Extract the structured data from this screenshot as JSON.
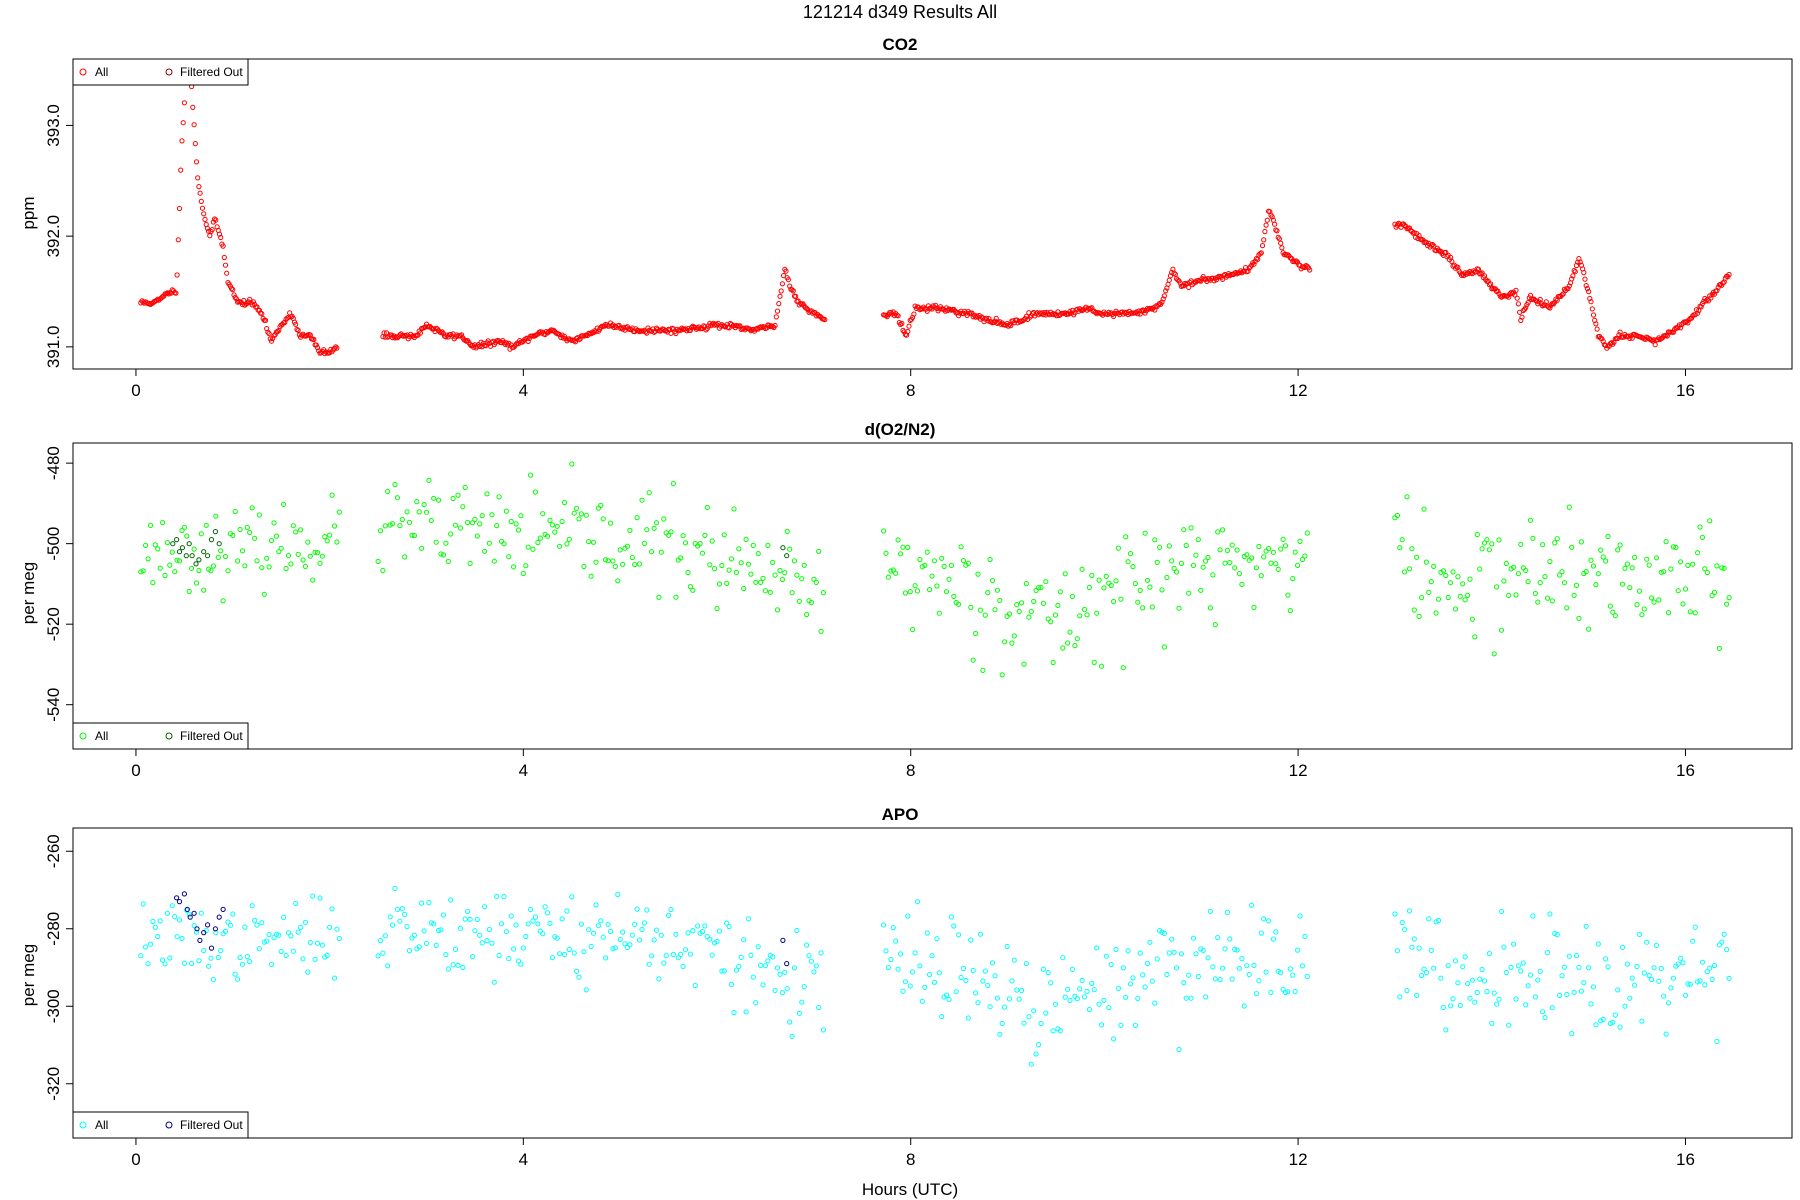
{
  "figure": {
    "title": "121214   d349   Results All",
    "xlabel": "Hours (UTC)"
  },
  "chart_data": [
    {
      "type": "scatter",
      "title": "CO2",
      "ylabel": "ppm",
      "xlim": [
        -0.65,
        17.1
      ],
      "ylim": [
        390.8,
        393.6
      ],
      "xticks": [
        0,
        4,
        8,
        12,
        16
      ],
      "yticks": [
        391.0,
        392.0,
        393.0
      ],
      "ytick_labels": [
        "391.0",
        "392.0",
        "393.0"
      ],
      "grid": false,
      "legend_position": "top-left",
      "legend": [
        {
          "name": "All",
          "color": "#ff0000"
        },
        {
          "name": "Filtered Out",
          "color": "#8b0000"
        }
      ],
      "mode": "smooth",
      "seed": 11,
      "noise": 0.012,
      "segments": [
        {
          "start": 0.05,
          "end": 2.08,
          "step": 0.0125,
          "knots": [
            [
              0.05,
              391.4
            ],
            [
              0.2,
              391.4
            ],
            [
              0.28,
              391.45
            ],
            [
              0.35,
              391.5
            ],
            [
              0.42,
              391.5
            ],
            [
              0.47,
              392.8
            ],
            [
              0.52,
              393.5
            ],
            [
              0.57,
              393.4
            ],
            [
              0.6,
              393.0
            ],
            [
              0.64,
              392.5
            ],
            [
              0.7,
              392.2
            ],
            [
              0.76,
              392.0
            ],
            [
              0.82,
              392.15
            ],
            [
              0.9,
              391.9
            ],
            [
              0.95,
              391.6
            ],
            [
              1.05,
              391.4
            ],
            [
              1.2,
              391.4
            ],
            [
              1.3,
              391.3
            ],
            [
              1.4,
              391.05
            ],
            [
              1.5,
              391.2
            ],
            [
              1.6,
              391.3
            ],
            [
              1.7,
              391.1
            ],
            [
              1.8,
              391.1
            ],
            [
              1.9,
              390.95
            ],
            [
              2.0,
              390.95
            ],
            [
              2.08,
              391.0
            ]
          ]
        },
        {
          "start": 2.55,
          "end": 7.12,
          "step": 0.0125,
          "knots": [
            [
              2.55,
              391.1
            ],
            [
              2.9,
              391.1
            ],
            [
              3.0,
              391.2
            ],
            [
              3.2,
              391.1
            ],
            [
              3.35,
              391.1
            ],
            [
              3.5,
              391.0
            ],
            [
              3.75,
              391.05
            ],
            [
              3.9,
              391.0
            ],
            [
              4.0,
              391.05
            ],
            [
              4.1,
              391.1
            ],
            [
              4.3,
              391.15
            ],
            [
              4.5,
              391.05
            ],
            [
              4.65,
              391.1
            ],
            [
              4.85,
              391.2
            ],
            [
              5.2,
              391.15
            ],
            [
              5.6,
              391.15
            ],
            [
              6.0,
              391.2
            ],
            [
              6.4,
              391.15
            ],
            [
              6.6,
              391.2
            ],
            [
              6.7,
              391.7
            ],
            [
              6.78,
              391.5
            ],
            [
              6.85,
              391.4
            ],
            [
              7.0,
              391.3
            ],
            [
              7.12,
              391.25
            ]
          ]
        },
        {
          "start": 7.72,
          "end": 12.12,
          "step": 0.0125,
          "knots": [
            [
              7.72,
              391.3
            ],
            [
              7.85,
              391.3
            ],
            [
              7.95,
              391.1
            ],
            [
              8.05,
              391.35
            ],
            [
              8.3,
              391.35
            ],
            [
              8.6,
              391.3
            ],
            [
              8.75,
              391.25
            ],
            [
              9.0,
              391.2
            ],
            [
              9.3,
              391.3
            ],
            [
              9.6,
              391.3
            ],
            [
              9.85,
              391.35
            ],
            [
              9.95,
              391.3
            ],
            [
              10.3,
              391.3
            ],
            [
              10.5,
              391.35
            ],
            [
              10.6,
              391.4
            ],
            [
              10.7,
              391.7
            ],
            [
              10.8,
              391.55
            ],
            [
              11.0,
              391.6
            ],
            [
              11.3,
              391.65
            ],
            [
              11.5,
              391.7
            ],
            [
              11.62,
              391.85
            ],
            [
              11.7,
              392.25
            ],
            [
              11.78,
              392.05
            ],
            [
              11.85,
              391.85
            ],
            [
              12.0,
              391.75
            ],
            [
              12.12,
              391.7
            ]
          ]
        },
        {
          "start": 13.0,
          "end": 16.45,
          "step": 0.0125,
          "knots": [
            [
              13.0,
              392.1
            ],
            [
              13.1,
              392.1
            ],
            [
              13.3,
              391.95
            ],
            [
              13.5,
              391.85
            ],
            [
              13.7,
              391.65
            ],
            [
              13.85,
              391.7
            ],
            [
              14.1,
              391.45
            ],
            [
              14.25,
              391.5
            ],
            [
              14.3,
              391.25
            ],
            [
              14.4,
              391.45
            ],
            [
              14.6,
              391.35
            ],
            [
              14.8,
              391.55
            ],
            [
              14.9,
              391.8
            ],
            [
              15.0,
              391.5
            ],
            [
              15.1,
              391.1
            ],
            [
              15.2,
              391.0
            ],
            [
              15.3,
              391.1
            ],
            [
              15.5,
              391.1
            ],
            [
              15.7,
              391.05
            ],
            [
              15.9,
              391.15
            ],
            [
              16.1,
              391.3
            ],
            [
              16.3,
              391.5
            ],
            [
              16.45,
              391.65
            ]
          ]
        }
      ],
      "filtered_points": []
    },
    {
      "type": "scatter",
      "title": "d(O2/N2)",
      "ylabel": "per meg",
      "xlim": [
        -0.65,
        17.1
      ],
      "ylim": [
        -551,
        -475
      ],
      "xticks": [
        0,
        4,
        8,
        12,
        16
      ],
      "yticks": [
        -540,
        -520,
        -500,
        -480
      ],
      "ytick_labels": [
        "-540",
        "-520",
        "-500",
        "-480"
      ],
      "grid": false,
      "legend_position": "bottom-left",
      "legend": [
        {
          "name": "All",
          "color": "#00ff00"
        },
        {
          "name": "Filtered Out",
          "color": "#006400"
        }
      ],
      "mode": "scatter",
      "seed": 23,
      "segments": [
        {
          "start": 0.05,
          "end": 2.1,
          "step": 0.025,
          "spread": 4.5,
          "trend": [
            [
              0.05,
              -502
            ],
            [
              1.0,
              -502
            ],
            [
              2.1,
              -499
            ]
          ]
        },
        {
          "start": 2.5,
          "end": 7.12,
          "step": 0.025,
          "spread": 6,
          "trend": [
            [
              2.5,
              -496
            ],
            [
              4.0,
              -498
            ],
            [
              5.5,
              -500
            ],
            [
              6.3,
              -507
            ],
            [
              7.12,
              -513
            ]
          ]
        },
        {
          "start": 7.72,
          "end": 12.1,
          "step": 0.025,
          "spread": 7,
          "trend": [
            [
              7.72,
              -505
            ],
            [
              8.5,
              -510
            ],
            [
              9.4,
              -520
            ],
            [
              10.2,
              -510
            ],
            [
              11.0,
              -506
            ],
            [
              12.1,
              -503
            ]
          ]
        },
        {
          "start": 13.0,
          "end": 16.45,
          "step": 0.025,
          "spread": 7,
          "trend": [
            [
              13.0,
              -500
            ],
            [
              13.5,
              -512
            ],
            [
              14.3,
              -506
            ],
            [
              15.3,
              -510
            ],
            [
              16.45,
              -505
            ]
          ]
        }
      ],
      "filtered_points": [
        [
          0.38,
          -500
        ],
        [
          0.42,
          -499
        ],
        [
          0.45,
          -502
        ],
        [
          0.48,
          -501
        ],
        [
          0.52,
          -503
        ],
        [
          0.55,
          -500
        ],
        [
          0.58,
          -503
        ],
        [
          0.62,
          -505
        ],
        [
          0.65,
          -504
        ],
        [
          0.7,
          -502
        ],
        [
          0.74,
          -503
        ],
        [
          0.78,
          -499
        ],
        [
          0.82,
          -497
        ],
        [
          0.86,
          -500
        ],
        [
          6.68,
          -501
        ],
        [
          6.72,
          -503
        ]
      ]
    },
    {
      "type": "scatter",
      "title": "APO",
      "ylabel": "per meg",
      "xlim": [
        -0.65,
        17.1
      ],
      "ylim": [
        -334,
        -254
      ],
      "xticks": [
        0,
        4,
        8,
        12,
        16
      ],
      "yticks": [
        -320,
        -300,
        -280,
        -260
      ],
      "ytick_labels": [
        "-320",
        "-300",
        "-280",
        "-260"
      ],
      "grid": false,
      "legend_position": "bottom-left",
      "legend": [
        {
          "name": "All",
          "color": "#00ffff"
        },
        {
          "name": "Filtered Out",
          "color": "#00008b"
        }
      ],
      "mode": "scatter",
      "seed": 37,
      "segments": [
        {
          "start": 0.05,
          "end": 2.1,
          "step": 0.025,
          "spread": 4.5,
          "trend": [
            [
              0.05,
              -282
            ],
            [
              1.0,
              -284
            ],
            [
              2.1,
              -282
            ]
          ]
        },
        {
          "start": 2.5,
          "end": 7.12,
          "step": 0.025,
          "spread": 6,
          "trend": [
            [
              2.5,
              -279
            ],
            [
              4.0,
              -281
            ],
            [
              5.5,
              -282
            ],
            [
              6.3,
              -290
            ],
            [
              7.12,
              -296
            ]
          ]
        },
        {
          "start": 7.72,
          "end": 12.1,
          "step": 0.025,
          "spread": 7,
          "trend": [
            [
              7.72,
              -288
            ],
            [
              8.5,
              -292
            ],
            [
              9.4,
              -302
            ],
            [
              10.2,
              -293
            ],
            [
              11.0,
              -288
            ],
            [
              12.1,
              -286
            ]
          ]
        },
        {
          "start": 13.0,
          "end": 16.45,
          "step": 0.025,
          "spread": 7,
          "trend": [
            [
              13.0,
              -283
            ],
            [
              13.5,
              -295
            ],
            [
              14.3,
              -289
            ],
            [
              15.3,
              -293
            ],
            [
              16.45,
              -289
            ]
          ]
        }
      ],
      "filtered_points": [
        [
          0.42,
          -272
        ],
        [
          0.45,
          -273
        ],
        [
          0.5,
          -271
        ],
        [
          0.53,
          -275
        ],
        [
          0.56,
          -277
        ],
        [
          0.6,
          -276
        ],
        [
          0.63,
          -280
        ],
        [
          0.66,
          -283
        ],
        [
          0.7,
          -281
        ],
        [
          0.74,
          -279
        ],
        [
          0.78,
          -285
        ],
        [
          0.82,
          -280
        ],
        [
          0.86,
          -277
        ],
        [
          0.9,
          -275
        ],
        [
          6.68,
          -283
        ],
        [
          6.72,
          -289
        ]
      ]
    }
  ]
}
